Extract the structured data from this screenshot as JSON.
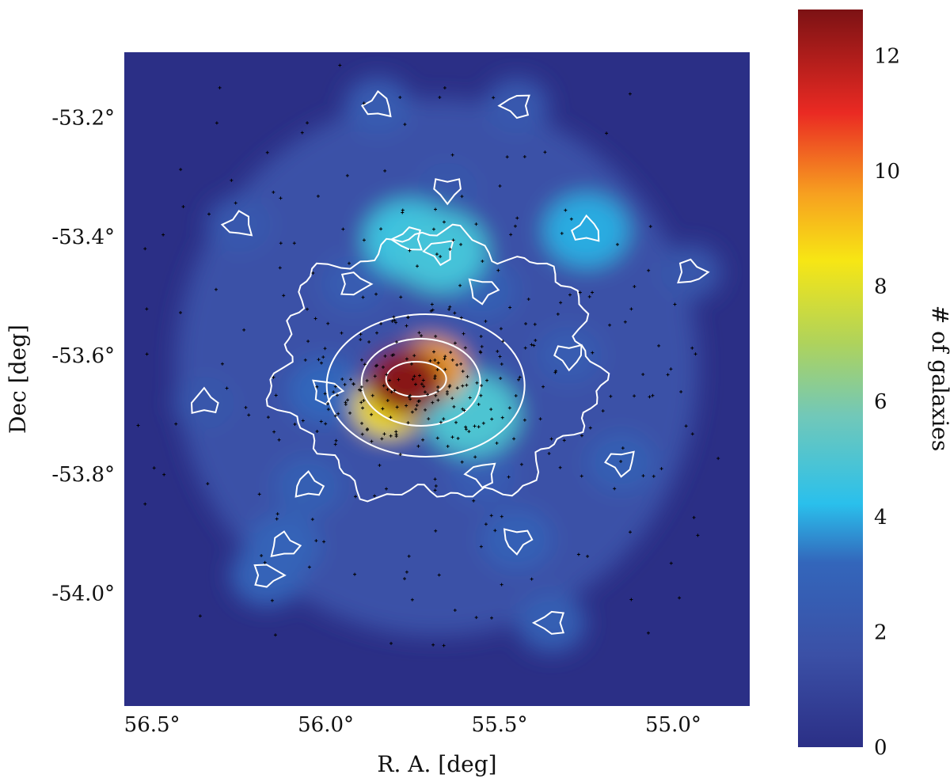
{
  "chart_data": {
    "type": "heatmap",
    "xlabel": "R. A. [deg]",
    "ylabel": "Dec [deg]",
    "colorbar_label": "# of galaxies",
    "xlim": [
      56.58,
      54.78
    ],
    "ylim": [
      -54.19,
      -53.09
    ],
    "x_ticks": [
      {
        "value": 56.5,
        "label": "56.5°"
      },
      {
        "value": 56.0,
        "label": "56.0°"
      },
      {
        "value": 55.5,
        "label": "55.5°"
      },
      {
        "value": 55.0,
        "label": "55.0°"
      }
    ],
    "y_ticks": [
      {
        "value": -53.2,
        "label": "-53.2°"
      },
      {
        "value": -53.4,
        "label": "-53.4°"
      },
      {
        "value": -53.6,
        "label": "-53.6°"
      },
      {
        "value": -53.8,
        "label": "-53.8°"
      },
      {
        "value": -54.0,
        "label": "-54.0°"
      }
    ],
    "colorbar_range": [
      0,
      12.8
    ],
    "colorbar_ticks": [
      {
        "value": 0,
        "label": "0"
      },
      {
        "value": 2,
        "label": "2"
      },
      {
        "value": 4,
        "label": "4"
      },
      {
        "value": 6,
        "label": "6"
      },
      {
        "value": 8,
        "label": "8"
      },
      {
        "value": 10,
        "label": "10"
      },
      {
        "value": 12,
        "label": "12"
      }
    ],
    "colormap": "jet",
    "colors": {
      "background": "#2b2f86",
      "contour": "#ffffff",
      "galaxy_marker": "#000000"
    },
    "density_peaks": [
      {
        "ra": 55.77,
        "dec": -53.645,
        "value": 12.6
      },
      {
        "ra": 55.7,
        "dec": -53.625,
        "value": 9.5
      },
      {
        "ra": 55.82,
        "dec": -53.685,
        "value": 8.5
      },
      {
        "ra": 55.58,
        "dec": -53.7,
        "value": 5.0
      },
      {
        "ra": 55.67,
        "dec": -53.425,
        "value": 4.8
      },
      {
        "ra": 55.76,
        "dec": -53.405,
        "value": 4.6
      },
      {
        "ra": 55.25,
        "dec": -53.39,
        "value": 4.0
      },
      {
        "ra": 56.12,
        "dec": -53.92,
        "value": 3.0
      },
      {
        "ra": 56.17,
        "dec": -53.97,
        "value": 3.0
      },
      {
        "ra": 55.45,
        "dec": -53.91,
        "value": 2.8
      },
      {
        "ra": 55.15,
        "dec": -53.78,
        "value": 2.6
      },
      {
        "ra": 55.35,
        "dec": -54.05,
        "value": 2.6
      },
      {
        "ra": 55.85,
        "dec": -53.18,
        "value": 2.4
      },
      {
        "ra": 56.05,
        "dec": -53.82,
        "value": 2.6
      },
      {
        "ra": 55.92,
        "dec": -53.48,
        "value": 2.4
      },
      {
        "ra": 55.55,
        "dec": -53.49,
        "value": 2.6
      },
      {
        "ra": 55.3,
        "dec": -53.6,
        "value": 2.4
      },
      {
        "ra": 55.45,
        "dec": -53.18,
        "value": 2.2
      },
      {
        "ra": 56.25,
        "dec": -53.38,
        "value": 2.2
      },
      {
        "ra": 56.35,
        "dec": -53.68,
        "value": 2.0
      },
      {
        "ra": 54.95,
        "dec": -53.46,
        "value": 2.0
      },
      {
        "ra": 56.0,
        "dec": -53.66,
        "value": 3.2
      },
      {
        "ra": 55.65,
        "dec": -53.32,
        "value": 2.0
      },
      {
        "ra": 55.55,
        "dec": -53.8,
        "value": 2.5
      }
    ]
  }
}
